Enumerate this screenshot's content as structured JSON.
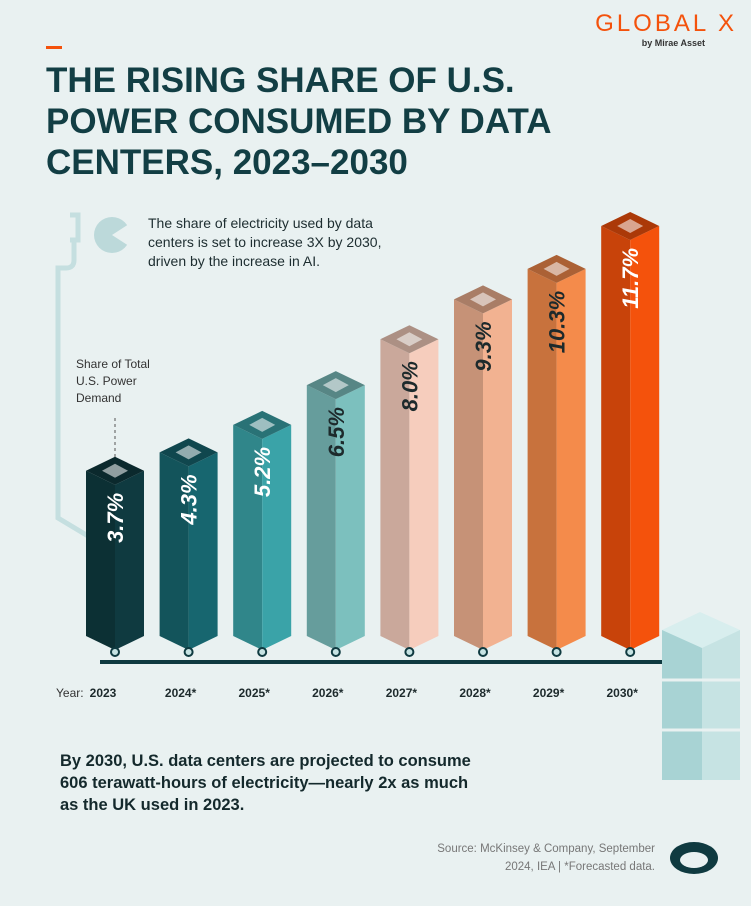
{
  "brand": {
    "name": "GLOBAL X",
    "tagline": "by Mirae Asset"
  },
  "chart_data": {
    "type": "bar",
    "title": "THE RISING SHARE OF U.S. POWER CONSUMED BY DATA CENTERS, 2023–2030",
    "annotation": "The share of electricity used by data centers is set to increase 3X by 2030, driven by the increase in AI.",
    "value_caption": "Share of Total U.S. Power Demand",
    "x_label": "Year:",
    "categories": [
      "2023",
      "2024*",
      "2025*",
      "2026*",
      "2027*",
      "2028*",
      "2029*",
      "2030*"
    ],
    "values": [
      3.7,
      4.3,
      5.2,
      6.5,
      8.0,
      9.3,
      10.3,
      11.7
    ],
    "value_labels": [
      "3.7%",
      "4.3%",
      "5.2%",
      "6.5%",
      "8.0%",
      "9.3%",
      "10.3%",
      "11.7%"
    ],
    "colors": [
      "#0f3a40",
      "#17666f",
      "#3aa3a8",
      "#7cc0be",
      "#f6cdbd",
      "#f2b291",
      "#f48b4b",
      "#f4520c"
    ]
  },
  "footer": {
    "takeaway": "By 2030, U.S. data centers are projected to consume 606 terawatt-hours of electricity—nearly 2x as much as the UK used in 2023.",
    "source": "Source: McKinsey & Company, September 2024, IEA | *Forecasted data."
  }
}
